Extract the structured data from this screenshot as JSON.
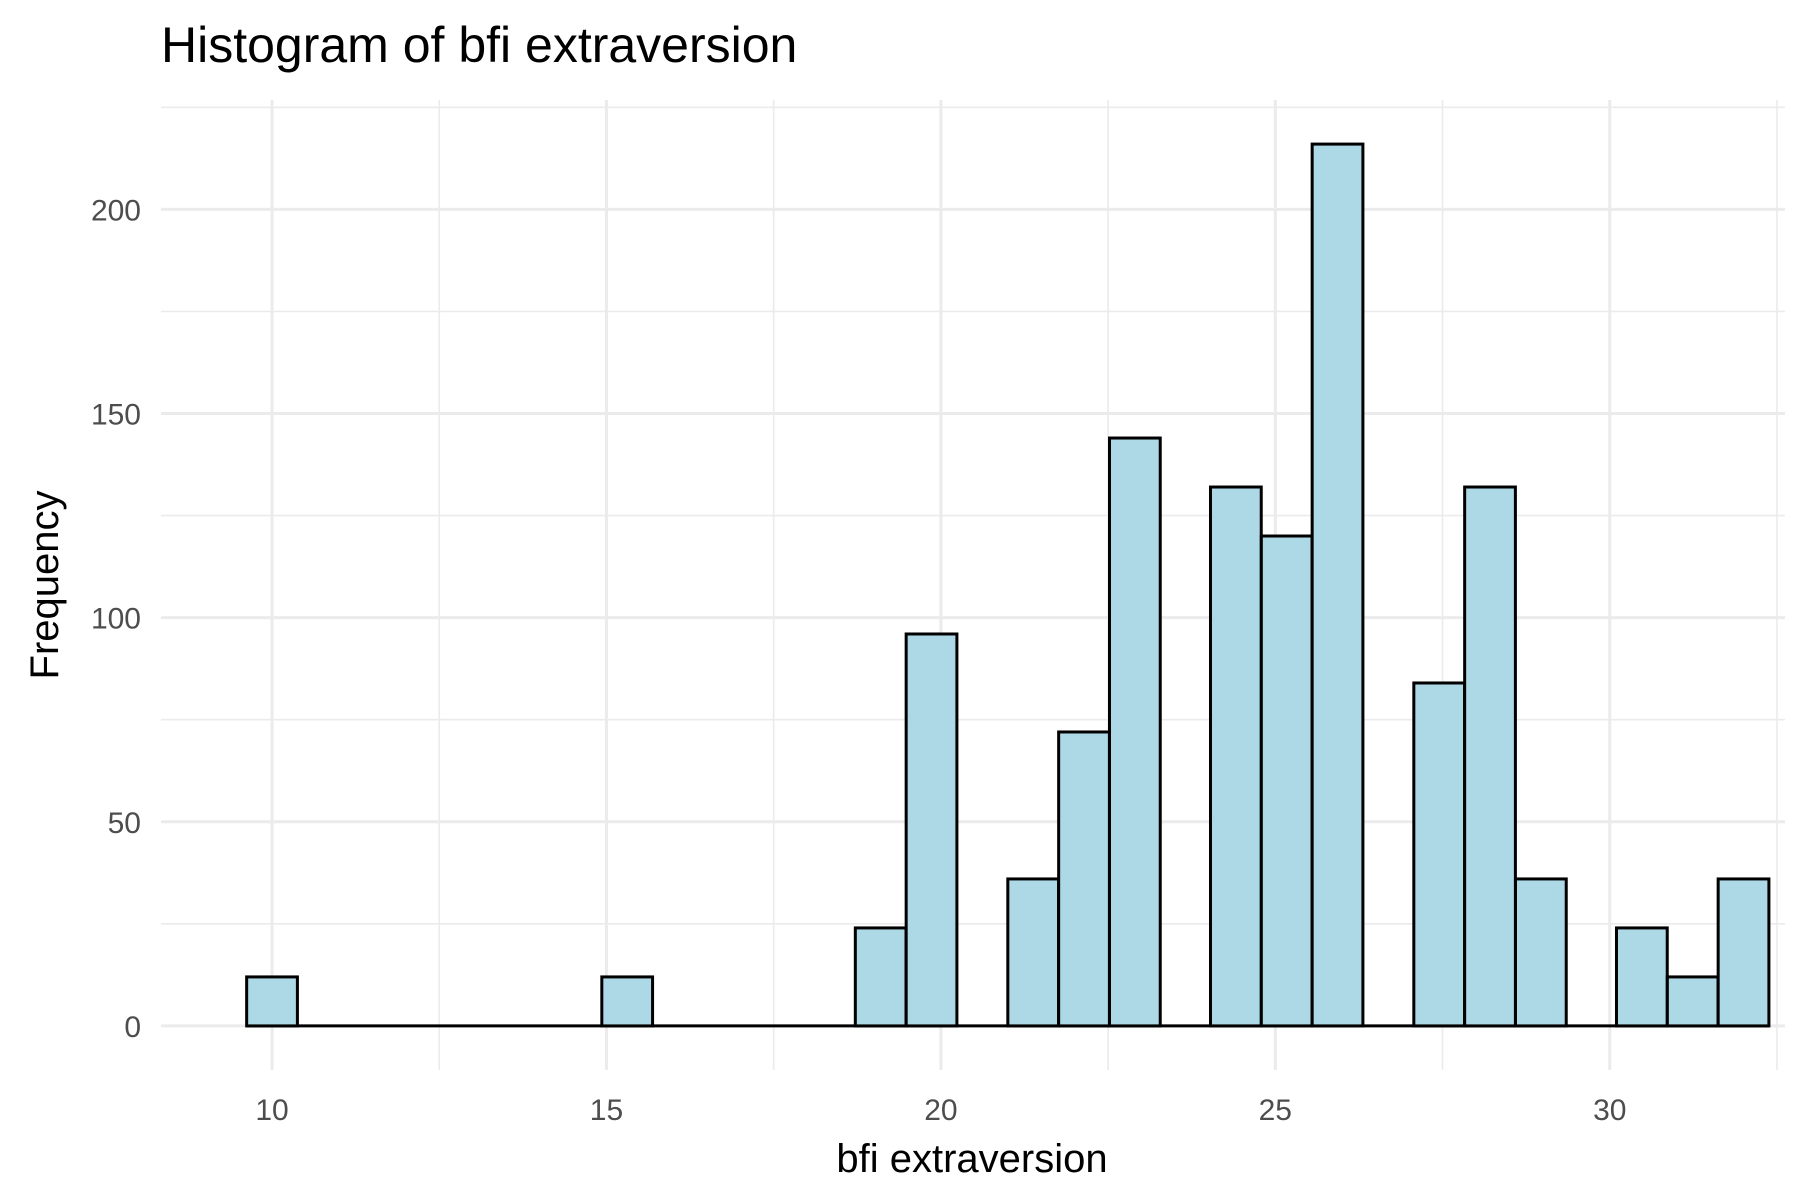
{
  "chart_data": {
    "type": "bar",
    "title": "Histogram of bfi extraversion",
    "xlabel": "bfi extraversion",
    "ylabel": "Frequency",
    "bin_width": 0.7586,
    "bins": [
      {
        "center": 10.0,
        "count": 12
      },
      {
        "center": 15.31,
        "count": 12
      },
      {
        "center": 19.1,
        "count": 24
      },
      {
        "center": 19.86,
        "count": 96
      },
      {
        "center": 21.38,
        "count": 36
      },
      {
        "center": 22.14,
        "count": 72
      },
      {
        "center": 22.9,
        "count": 144
      },
      {
        "center": 24.41,
        "count": 132
      },
      {
        "center": 25.17,
        "count": 120
      },
      {
        "center": 25.93,
        "count": 216
      },
      {
        "center": 27.45,
        "count": 84
      },
      {
        "center": 28.21,
        "count": 132
      },
      {
        "center": 28.97,
        "count": 36
      },
      {
        "center": 30.48,
        "count": 24
      },
      {
        "center": 31.24,
        "count": 12
      },
      {
        "center": 32.0,
        "count": 36
      }
    ],
    "xlim": [
      8.34,
      32.62
    ],
    "ylim": [
      -10.8,
      226.8
    ],
    "x_ticks": [
      10,
      15,
      20,
      25,
      30
    ],
    "x_minor_ticks": [
      12.5,
      17.5,
      22.5,
      27.5,
      32.5
    ],
    "y_ticks": [
      0,
      50,
      100,
      150,
      200
    ],
    "y_minor_ticks": [
      25,
      75,
      125,
      175,
      225
    ],
    "grid": true,
    "legend": "none",
    "bar_fill": "#add8e6",
    "bar_outline": "#000000"
  }
}
